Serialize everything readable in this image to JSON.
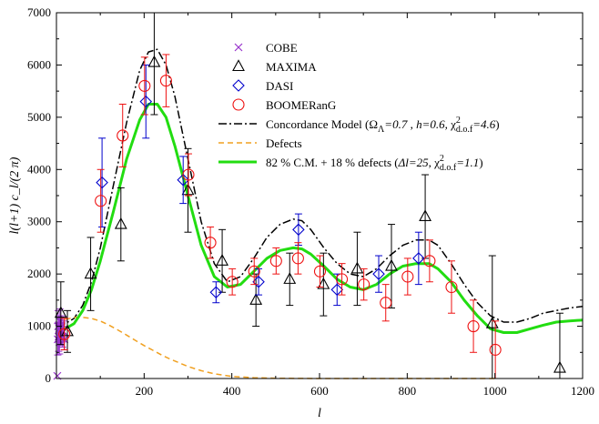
{
  "chart_data": {
    "type": "scatter",
    "xlabel": "l",
    "ylabel": "l(l+1) c_l/(2 π)",
    "xlim": [
      0,
      1200
    ],
    "ylim": [
      0,
      7000
    ],
    "xticks": [
      0,
      200,
      400,
      600,
      800,
      1000,
      1200
    ],
    "xtick_labels": [
      "",
      "200",
      "400",
      "600",
      "800",
      "1000",
      "1200"
    ],
    "yticks": [
      0,
      1000,
      2000,
      3000,
      4000,
      5000,
      6000,
      7000
    ],
    "ytick_labels": [
      "0",
      "1000",
      "2000",
      "3000",
      "4000",
      "5000",
      "6000",
      "7000"
    ],
    "grid": false,
    "legend_position": "top-right",
    "legend": [
      {
        "label": "COBE",
        "marker": "x",
        "color": "#9933cc"
      },
      {
        "label": "MAXIMA",
        "marker": "triangle",
        "color": "#000000"
      },
      {
        "label": "DASI",
        "marker": "diamond",
        "color": "#0000cc"
      },
      {
        "label": "BOOMERanG",
        "marker": "circle",
        "color": "#ee1111"
      },
      {
        "label": "Concordance Model (Ω_Λ=0.7 , h=0.6, χ²_d.o.f=4.6)",
        "line": "dashdot",
        "color": "#000000"
      },
      {
        "label": "Defects",
        "line": "dashed",
        "color": "#f0a020"
      },
      {
        "label": "82 % C.M. + 18 % defects (Δl=25, χ²_d.o.f=1.1)",
        "line": "solid",
        "color": "#22dd11"
      }
    ],
    "legend_rich": {
      "concordance": {
        "prefix": "Concordance Model (",
        "omega": "Ω",
        "omega_sub": "Λ",
        "eq1": "=0.7",
        "mid": " , ",
        "h": "h=0.6, ",
        "chi": "χ",
        "chi_sup": "2",
        "chi_sub": "d.o.f",
        "eq2": "=4.6",
        "suffix": ")"
      },
      "mix": {
        "prefix": "82 % C.M. + 18 % defects (",
        "dl": "Δl=25, ",
        "chi": "χ",
        "chi_sup": "2",
        "chi_sub": "d.o.f",
        "eq": "=1.1",
        "suffix": ")"
      }
    },
    "series": [
      {
        "name": "COBE",
        "marker": "x",
        "color": "#9933cc",
        "points": [
          [
            2,
            50,
            0
          ],
          [
            3,
            750,
            300
          ],
          [
            4,
            1000,
            300
          ],
          [
            5,
            800,
            280
          ],
          [
            6,
            950,
            250
          ],
          [
            7,
            700,
            230
          ],
          [
            8,
            1100,
            230
          ],
          [
            9,
            850,
            220
          ],
          [
            10,
            900,
            220
          ],
          [
            12,
            1000,
            200
          ],
          [
            14,
            800,
            200
          ],
          [
            16,
            900,
            200
          ],
          [
            18,
            750,
            200
          ]
        ]
      },
      {
        "name": "MAXIMA",
        "marker": "triangle",
        "color": "#000000",
        "points": [
          [
            10,
            1250,
            600
          ],
          [
            25,
            900,
            400
          ],
          [
            78,
            2000,
            700
          ],
          [
            147,
            2950,
            700
          ],
          [
            223,
            6050,
            1000
          ],
          [
            300,
            3600,
            800
          ],
          [
            378,
            2250,
            600
          ],
          [
            455,
            1500,
            500
          ],
          [
            532,
            1900,
            500
          ],
          [
            609,
            1800,
            600
          ],
          [
            686,
            2100,
            700
          ],
          [
            764,
            2150,
            800
          ],
          [
            841,
            3100,
            800
          ],
          [
            994,
            1050,
            1300
          ],
          [
            1148,
            200,
            1050
          ]
        ]
      },
      {
        "name": "DASI",
        "marker": "diamond",
        "color": "#0000cc",
        "points": [
          [
            104,
            3750,
            850
          ],
          [
            204,
            5300,
            700
          ],
          [
            289,
            3800,
            450
          ],
          [
            364,
            1650,
            200
          ],
          [
            461,
            1850,
            250
          ],
          [
            552,
            2850,
            300
          ],
          [
            640,
            1700,
            300
          ],
          [
            735,
            2000,
            350
          ],
          [
            826,
            2300,
            500
          ]
        ]
      },
      {
        "name": "BOOMERanG",
        "marker": "circle",
        "color": "#ee1111",
        "points": [
          [
            18,
            850,
            300
          ],
          [
            101,
            3400,
            600
          ],
          [
            151,
            4650,
            600
          ],
          [
            201,
            5600,
            550
          ],
          [
            250,
            5700,
            500
          ],
          [
            301,
            3900,
            400
          ],
          [
            351,
            2600,
            300
          ],
          [
            401,
            1850,
            250
          ],
          [
            451,
            2050,
            250
          ],
          [
            501,
            2250,
            250
          ],
          [
            551,
            2300,
            300
          ],
          [
            601,
            2050,
            300
          ],
          [
            651,
            1900,
            300
          ],
          [
            701,
            1800,
            300
          ],
          [
            751,
            1450,
            350
          ],
          [
            801,
            1950,
            350
          ],
          [
            851,
            2250,
            400
          ],
          [
            901,
            1750,
            500
          ],
          [
            951,
            1000,
            500
          ],
          [
            1001,
            550,
            550
          ]
        ]
      }
    ],
    "curves": [
      {
        "name": "Concordance Model",
        "style": "dashdot",
        "color": "#000000",
        "x": [
          2,
          10,
          20,
          40,
          60,
          80,
          100,
          130,
          160,
          190,
          210,
          230,
          250,
          270,
          300,
          330,
          360,
          390,
          420,
          450,
          480,
          510,
          540,
          560,
          580,
          610,
          640,
          670,
          700,
          730,
          760,
          790,
          820,
          850,
          870,
          900,
          930,
          960,
          990,
          1020,
          1050,
          1080,
          1110,
          1140,
          1170,
          1200
        ],
        "y": [
          1000,
          1000,
          1050,
          1150,
          1400,
          1850,
          2500,
          3700,
          4900,
          5900,
          6250,
          6300,
          6000,
          5400,
          4200,
          3000,
          2200,
          1850,
          1950,
          2300,
          2700,
          2950,
          3050,
          3020,
          2850,
          2500,
          2200,
          2000,
          1950,
          2100,
          2350,
          2550,
          2650,
          2650,
          2550,
          2200,
          1800,
          1450,
          1200,
          1080,
          1080,
          1150,
          1250,
          1300,
          1350,
          1380
        ]
      },
      {
        "name": "Defects",
        "style": "dashed",
        "color": "#f0a020",
        "x": [
          2,
          10,
          20,
          40,
          60,
          80,
          100,
          120,
          140,
          160,
          180,
          200,
          220,
          240,
          260,
          280,
          300,
          330,
          360,
          400,
          450,
          500,
          600,
          700,
          800,
          900,
          1000
        ],
        "y": [
          1050,
          1100,
          1130,
          1170,
          1170,
          1150,
          1100,
          1020,
          930,
          830,
          730,
          630,
          540,
          450,
          370,
          300,
          230,
          150,
          90,
          40,
          15,
          5,
          0,
          0,
          0,
          0,
          0
        ]
      },
      {
        "name": "82 % C.M. + 18 % defects",
        "style": "solid",
        "color": "#22dd11",
        "x": [
          2,
          10,
          20,
          40,
          60,
          80,
          100,
          130,
          160,
          190,
          210,
          230,
          250,
          270,
          300,
          330,
          360,
          390,
          420,
          450,
          480,
          510,
          540,
          560,
          580,
          610,
          640,
          670,
          700,
          730,
          760,
          790,
          820,
          850,
          870,
          900,
          930,
          960,
          990,
          1020,
          1050,
          1080,
          1110,
          1140,
          1170,
          1200
        ],
        "y": [
          900,
          900,
          950,
          1050,
          1300,
          1700,
          2250,
          3200,
          4200,
          4950,
          5250,
          5250,
          5000,
          4450,
          3500,
          2550,
          1950,
          1750,
          1800,
          2050,
          2300,
          2450,
          2500,
          2480,
          2380,
          2150,
          1900,
          1750,
          1700,
          1800,
          2000,
          2150,
          2200,
          2200,
          2100,
          1850,
          1500,
          1200,
          950,
          880,
          880,
          950,
          1020,
          1080,
          1100,
          1120
        ]
      }
    ]
  }
}
